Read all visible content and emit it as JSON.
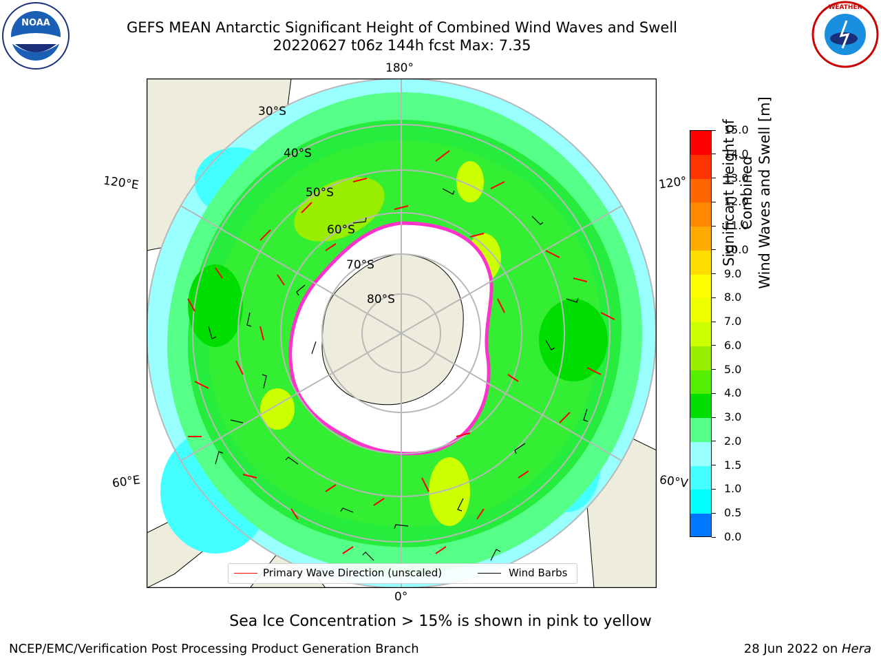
{
  "title": {
    "line1": "GEFS MEAN Antarctic Significant Height of Combined Wind Waves and Swell",
    "line2": "20220627 t06z 144h fcst   Max: 7.35"
  },
  "map": {
    "projection": "south-polar-stereographic",
    "meridian_labels": {
      "top": "180°",
      "bottom": "0°",
      "upper_left": "120°E",
      "lower_left": "60°E",
      "upper_right": "120°",
      "lower_right": "60°V"
    },
    "parallel_labels": [
      "30°S",
      "40°S",
      "50°S",
      "60°S",
      "70°S",
      "80°S"
    ],
    "colors": {
      "land": "#eeecdc",
      "ice": "#ffffff",
      "ice_edge": "#ff33cc",
      "wave_arrow": "#ff0000",
      "wind_barb": "#000000",
      "graticule": "#b8b8b8"
    }
  },
  "colorbar": {
    "label_line1": "Significant Height of Combined",
    "label_line2": "Wind Waves and Swell [m]",
    "ticks": [
      "0.0",
      "0.5",
      "1.0",
      "1.5",
      "2.0",
      "3.0",
      "4.0",
      "5.0",
      "6.0",
      "7.0",
      "8.0",
      "9.0",
      "10.0",
      "11.0",
      "12.0",
      "13.0",
      "14.0",
      "15.0"
    ],
    "colors": [
      "#0000ff",
      "#0077ff",
      "#00ffff",
      "#44ffff",
      "#99ffff",
      "#55ff88",
      "#00dd00",
      "#55ee00",
      "#99ee00",
      "#ccff00",
      "#eeff00",
      "#ffff00",
      "#ffdd00",
      "#ffaa00",
      "#ff8800",
      "#ff6600",
      "#ff3300",
      "#ff0000"
    ]
  },
  "legend": {
    "wave_label": "Primary Wave Direction (unscaled)",
    "barb_label": "Wind Barbs"
  },
  "ice_note": "Sea Ice Concentration > 15% is shown in pink to yellow",
  "footer": {
    "left": "NCEP/EMC/Verification Post Processing Product Generation Branch",
    "right_date": "28 Jun 2022 on ",
    "right_host": "Hera"
  },
  "logos": {
    "left": "NOAA",
    "right": "NATIONAL WEATHER SERVICE"
  }
}
